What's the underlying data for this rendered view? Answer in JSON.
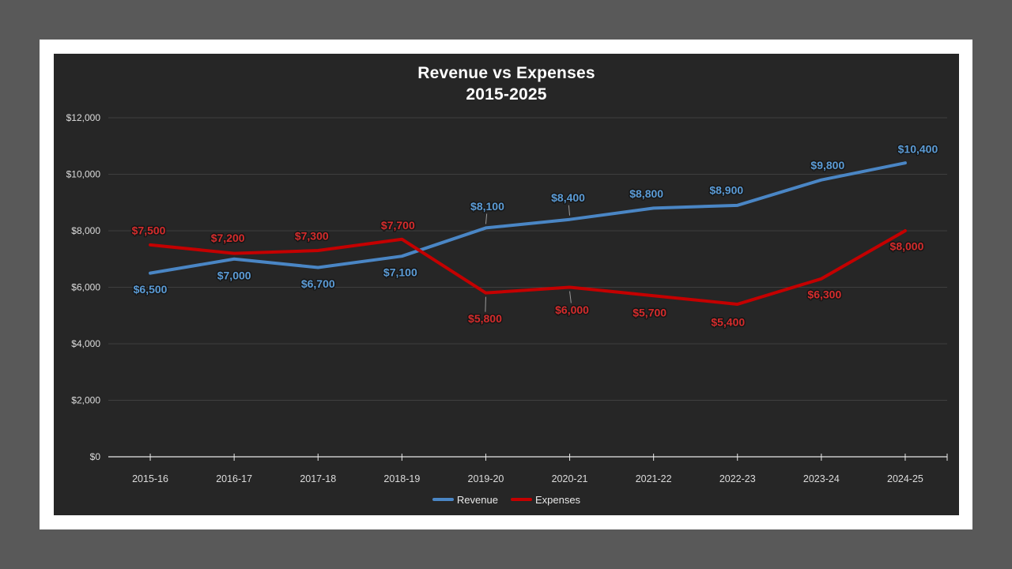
{
  "stage": {
    "background_color": "#595959",
    "slide_background_color": "#ffffff",
    "chart_background_color": "#262626"
  },
  "chart_data": {
    "type": "line",
    "title": "Revenue vs Expenses",
    "subtitle": "2015-2025",
    "categories": [
      "2015-16",
      "2016-17",
      "2017-18",
      "2018-19",
      "2019-20",
      "2020-21",
      "2021-22",
      "2022-23",
      "2023-24",
      "2024-25"
    ],
    "series": [
      {
        "name": "Revenue",
        "color": "#4a86c5",
        "label_color": "#5b9bd5",
        "values": [
          6500,
          7000,
          6700,
          7100,
          8100,
          8400,
          8800,
          8900,
          9800,
          10400
        ],
        "labels": [
          "$6,500",
          "$7,000",
          "$6,700",
          "$7,100",
          "$8,100",
          "$8,400",
          "$8,800",
          "$8,900",
          "$9,800",
          "$10,400"
        ],
        "label_offsets": [
          [
            0,
            21
          ],
          [
            0,
            21
          ],
          [
            0,
            21
          ],
          [
            -2,
            21
          ],
          [
            2,
            -27
          ],
          [
            -2,
            -27
          ],
          [
            -9,
            -18
          ],
          [
            -14,
            -19
          ],
          [
            8,
            -18
          ],
          [
            16,
            -17
          ]
        ],
        "leader_indices": [
          4,
          5
        ]
      },
      {
        "name": "Expenses",
        "color": "#c40000",
        "label_color": "#d42c2c",
        "values": [
          7500,
          7200,
          7300,
          7700,
          5800,
          6000,
          5700,
          5400,
          6300,
          8000
        ],
        "labels": [
          "$7,500",
          "$7,200",
          "$7,300",
          "$7,700",
          "$5,800",
          "$6,000",
          "$5,700",
          "$5,400",
          "$6,300",
          "$8,000"
        ],
        "label_offsets": [
          [
            -2,
            -18
          ],
          [
            -8,
            -19
          ],
          [
            -8,
            -18
          ],
          [
            -5,
            -17
          ],
          [
            -1,
            33
          ],
          [
            3,
            29
          ],
          [
            -5,
            22
          ],
          [
            -12,
            23
          ],
          [
            4,
            20
          ],
          [
            2,
            20
          ]
        ],
        "leader_indices": [
          4,
          5
        ]
      }
    ],
    "y_ticks": [
      {
        "value": 0,
        "label": "$0"
      },
      {
        "value": 2000,
        "label": "$2,000"
      },
      {
        "value": 4000,
        "label": "$4,000"
      },
      {
        "value": 6000,
        "label": "$6,000"
      },
      {
        "value": 8000,
        "label": "$8,000"
      },
      {
        "value": 10000,
        "label": "$10,000"
      },
      {
        "value": 12000,
        "label": "$12,000"
      }
    ],
    "ylim": [
      0,
      12000
    ],
    "grid": true,
    "legend_position": "bottom",
    "axis_color": "#e8e8e8",
    "gridline_color": "#3f3f3f",
    "tick_label_color": "#dcdcdc",
    "leader_line_color": "#9a9a9a",
    "label_outline_color": "#161616"
  }
}
